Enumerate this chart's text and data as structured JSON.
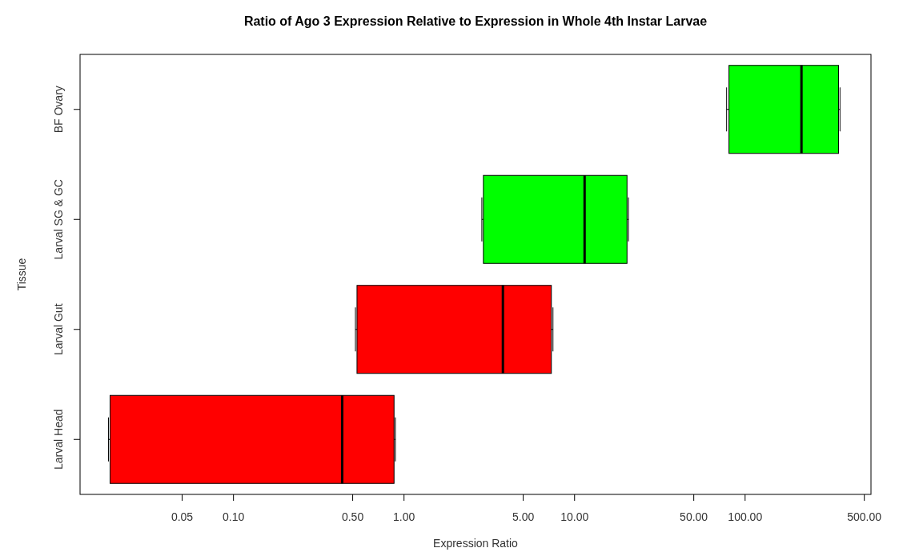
{
  "chart_data": {
    "type": "box",
    "orientation": "horizontal",
    "title": "Ratio of Ago 3 Expression Relative to Expression in Whole 4th Instar Larvae",
    "xlabel": "Expression Ratio",
    "ylabel": "Tissue",
    "log": "x",
    "categories": [
      "BF Ovary",
      "Larval SG & GC",
      "Larval Gut",
      "Larval Head"
    ],
    "colors": [
      "#00ff00",
      "#00ff00",
      "#ff0000",
      "#ff0000"
    ],
    "boxes": [
      {
        "low": 77.9,
        "q1": 80.4,
        "median": 214,
        "q3": 353,
        "high": 360
      },
      {
        "low": 2.86,
        "q1": 2.92,
        "median": 11.45,
        "q3": 20.3,
        "high": 20.7
      },
      {
        "low": 0.519,
        "q1": 0.53,
        "median": 3.8,
        "q3": 7.31,
        "high": 7.47
      },
      {
        "low": 0.0185,
        "q1": 0.0189,
        "median": 0.434,
        "q3": 0.874,
        "high": 0.89
      }
    ],
    "xlim": [
      0.0126,
      547
    ],
    "xticks": [
      {
        "value": 0.05,
        "label": "0.05"
      },
      {
        "value": 0.1,
        "label": "0.10"
      },
      {
        "value": 0.5,
        "label": "0.50"
      },
      {
        "value": 1,
        "label": "1.00"
      },
      {
        "value": 5,
        "label": "5.00"
      },
      {
        "value": 10,
        "label": "10.00"
      },
      {
        "value": 50,
        "label": "50.00"
      },
      {
        "value": 100,
        "label": "100.00"
      },
      {
        "value": 500,
        "label": "500.00"
      }
    ]
  }
}
